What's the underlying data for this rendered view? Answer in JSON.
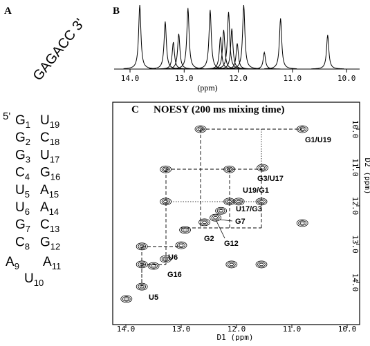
{
  "panels": {
    "A": {
      "label": "A",
      "loop_top": "GAGACC 3'",
      "five_prime": "5'",
      "pairs": [
        {
          "left": "G",
          "left_n": 1,
          "right": "U",
          "right_n": 19
        },
        {
          "left": "G",
          "left_n": 2,
          "right": "C",
          "right_n": 18
        },
        {
          "left": "G",
          "left_n": 3,
          "right": "U",
          "right_n": 17
        },
        {
          "left": "C",
          "left_n": 4,
          "right": "G",
          "right_n": 16
        },
        {
          "left": "U",
          "left_n": 5,
          "right": "A",
          "right_n": 15
        },
        {
          "left": "U",
          "left_n": 6,
          "right": "A",
          "right_n": 14
        },
        {
          "left": "G",
          "left_n": 7,
          "right": "C",
          "right_n": 13
        },
        {
          "left": "C",
          "left_n": 8,
          "right": "G",
          "right_n": 12
        }
      ],
      "loop": [
        {
          "base": "A",
          "n": 9
        },
        {
          "base": "A",
          "n": 11
        },
        {
          "base": "U",
          "n": 10
        }
      ]
    },
    "B": {
      "label": "B",
      "x_axis_label": "(ppm)",
      "xticks": [
        {
          "value": 14,
          "label": "14.0"
        },
        {
          "value": 13,
          "label": "13.0"
        },
        {
          "value": 12,
          "label": "12.0"
        },
        {
          "value": 11,
          "label": "11.0"
        },
        {
          "value": 10,
          "label": "10.0"
        }
      ],
      "peaks": [
        {
          "ppm": 13.82,
          "intensity": 100
        },
        {
          "ppm": 13.35,
          "intensity": 74
        },
        {
          "ppm": 13.2,
          "intensity": 42
        },
        {
          "ppm": 13.1,
          "intensity": 55
        },
        {
          "ppm": 12.93,
          "intensity": 95
        },
        {
          "ppm": 12.52,
          "intensity": 92
        },
        {
          "ppm": 12.33,
          "intensity": 50
        },
        {
          "ppm": 12.27,
          "intensity": 61
        },
        {
          "ppm": 12.18,
          "intensity": 89
        },
        {
          "ppm": 12.12,
          "intensity": 63
        },
        {
          "ppm": 12.02,
          "intensity": 40
        },
        {
          "ppm": 11.9,
          "intensity": 100
        },
        {
          "ppm": 11.52,
          "intensity": 26
        },
        {
          "ppm": 11.22,
          "intensity": 79
        },
        {
          "ppm": 10.35,
          "intensity": 53
        }
      ]
    },
    "C": {
      "label": "C",
      "title": "NOESY (200 ms mixing time)",
      "x_axis_label": "D1  (ppm)",
      "y_axis_label": "D2  (ppm)",
      "xticks": [
        {
          "value": 14,
          "label": "14.0"
        },
        {
          "value": 13,
          "label": "13.0"
        },
        {
          "value": 12,
          "label": "12.0"
        },
        {
          "value": 11,
          "label": "11.0"
        },
        {
          "value": 10,
          "label": "10.0"
        }
      ],
      "yticks": [
        {
          "value": 10,
          "label": "10.0"
        },
        {
          "value": 11,
          "label": "11.0"
        },
        {
          "value": 12,
          "label": "12.0"
        },
        {
          "value": 13,
          "label": "13.0"
        },
        {
          "value": 14,
          "label": "14.0"
        }
      ],
      "peaks": [
        {
          "d1": 10.81,
          "d2": 10.0
        },
        {
          "d1": 11.53,
          "d2": 11.01
        },
        {
          "d1": 11.96,
          "d2": 11.89
        },
        {
          "d1": 12.28,
          "d2": 12.13
        },
        {
          "d1": 12.38,
          "d2": 12.31
        },
        {
          "d1": 12.58,
          "d2": 12.43
        },
        {
          "d1": 12.93,
          "d2": 12.63
        },
        {
          "d1": 13.0,
          "d2": 13.03
        },
        {
          "d1": 13.28,
          "d2": 13.39
        },
        {
          "d1": 13.5,
          "d2": 13.57
        },
        {
          "d1": 13.71,
          "d2": 14.11
        },
        {
          "d1": 13.71,
          "d2": 13.06
        },
        {
          "d1": 13.71,
          "d2": 13.53
        },
        {
          "d1": 13.28,
          "d2": 11.05
        },
        {
          "d1": 13.28,
          "d2": 11.89
        },
        {
          "d1": 12.13,
          "d2": 11.05
        },
        {
          "d1": 12.13,
          "d2": 11.89
        },
        {
          "d1": 11.55,
          "d2": 11.89
        },
        {
          "d1": 11.55,
          "d2": 13.53
        },
        {
          "d1": 12.09,
          "d2": 13.53
        },
        {
          "d1": 12.65,
          "d2": 10.0
        },
        {
          "d1": 10.81,
          "d2": 12.45
        },
        {
          "d1": 13.99,
          "d2": 14.43
        }
      ],
      "annotations": [
        "G1/U19",
        "G3/U17",
        "U19/G1",
        "U17/G3",
        "G7",
        "G2",
        "G12",
        "U6",
        "G16",
        "U5"
      ]
    }
  }
}
